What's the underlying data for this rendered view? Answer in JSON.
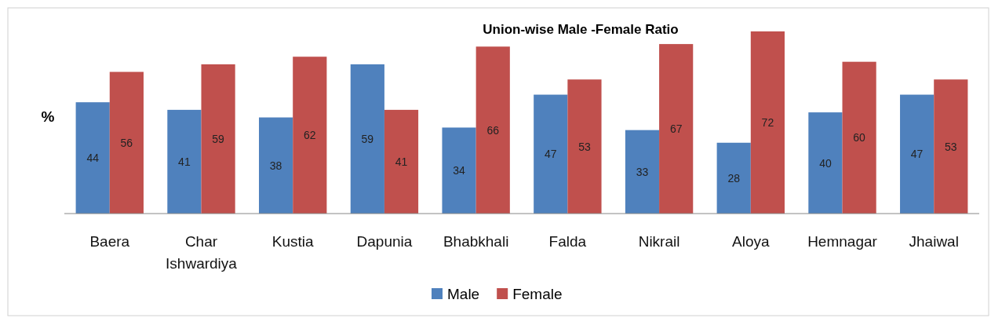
{
  "chart_data": {
    "type": "bar",
    "title": "Union-wise Male -Female Ratio",
    "ylabel": "%",
    "categories": [
      "Baera",
      "Char Ishwardiya",
      "Kustia",
      "Dapunia",
      "Bhabkhali",
      "Falda",
      "Nikrail",
      "Aloya",
      "Hemnagar",
      "Jhaiwal"
    ],
    "series": [
      {
        "name": "Male",
        "color": "#4f81bd",
        "values": [
          44,
          41,
          38,
          59,
          34,
          47,
          33,
          28,
          40,
          47
        ]
      },
      {
        "name": "Female",
        "color": "#c0504d",
        "values": [
          56,
          59,
          62,
          41,
          66,
          53,
          67,
          72,
          60,
          53
        ]
      }
    ],
    "data_labels": true,
    "legend": "bottom",
    "grid": false
  }
}
